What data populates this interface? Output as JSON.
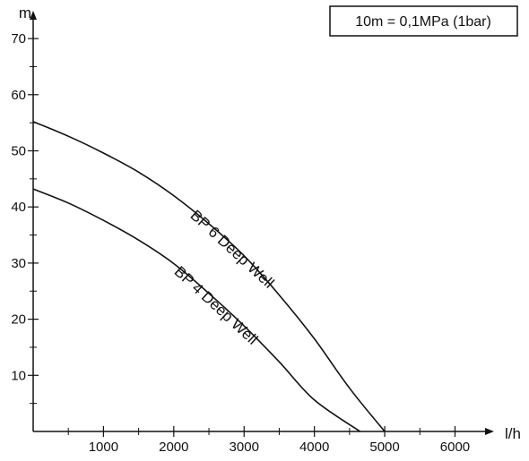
{
  "chart_data": {
    "type": "line",
    "title": "",
    "xlabel": "l/h",
    "ylabel": "m",
    "xlim": [
      0,
      6300
    ],
    "ylim": [
      0,
      74
    ],
    "xticks": [
      1000,
      2000,
      3000,
      4000,
      5000,
      6000
    ],
    "yticks": [
      10,
      20,
      30,
      40,
      50,
      60,
      70
    ],
    "grid": false,
    "legend": "none",
    "annotation": "10m = 0,1MPa (1bar)",
    "series": [
      {
        "name": "BP 6 Deep Well",
        "x": [
          0,
          500,
          1000,
          1500,
          2000,
          2500,
          3000,
          3500,
          4000,
          4500,
          5000
        ],
        "y": [
          55.2,
          52.6,
          49.6,
          46.2,
          42.0,
          37.0,
          31.3,
          24.3,
          16.5,
          7.7,
          0
        ]
      },
      {
        "name": "BP 4 Deep Well",
        "x": [
          0,
          500,
          1000,
          1500,
          2000,
          2500,
          3000,
          3500,
          4000,
          4650
        ],
        "y": [
          43.2,
          40.7,
          37.6,
          34.1,
          29.9,
          24.6,
          18.8,
          12.4,
          5.6,
          0
        ]
      }
    ]
  }
}
